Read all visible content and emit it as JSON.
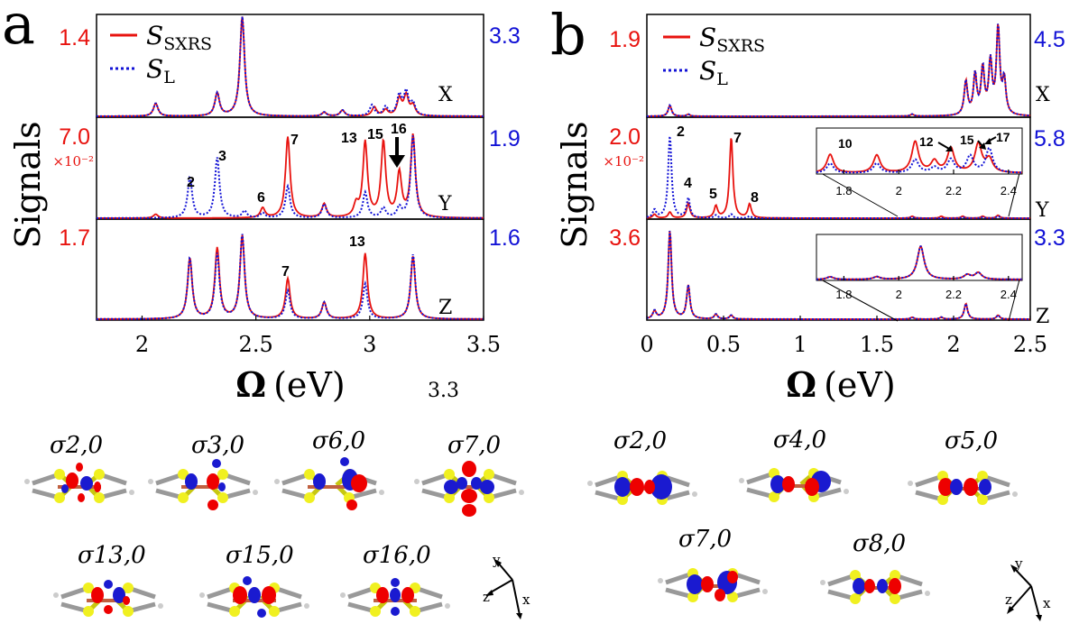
{
  "colors": {
    "red": "#e8130f",
    "blue": "#1212d6",
    "purple": "#7a1f8a",
    "black": "#000000"
  },
  "panels": [
    {
      "letter": "a",
      "legend": {
        "sxrs": "S_SXRS",
        "sl": "S_L",
        "sxrs_sub": "SXRS",
        "sl_sub": "L",
        "sym": "S"
      },
      "ylabel": "Signals",
      "xlabel_bold": "Ω",
      "xlabel_rest": "(eV)",
      "stray_label": "3.3",
      "xticks": [
        "2",
        "2.5",
        "3",
        "3.5"
      ],
      "subplots": [
        {
          "axis": "X",
          "left_top": "1.4",
          "left_exp": "",
          "right_top": "3.3",
          "peak_labels": []
        },
        {
          "axis": "Y",
          "left_top": "7.0",
          "left_exp": "×10⁻²",
          "right_top": "1.9",
          "peak_labels": [
            "2",
            "3",
            "6",
            "7",
            "13",
            "15",
            "16"
          ]
        },
        {
          "axis": "Z",
          "left_top": "1.7",
          "left_exp": "",
          "right_top": "1.6",
          "peak_labels": [
            "7",
            "13"
          ]
        }
      ]
    },
    {
      "letter": "b",
      "legend": {
        "sxrs": "S_SXRS",
        "sl": "S_L",
        "sxrs_sub": "SXRS",
        "sl_sub": "L",
        "sym": "S"
      },
      "ylabel": "Signals",
      "xlabel_bold": "Ω",
      "xlabel_rest": "(eV)",
      "xticks": [
        "0",
        "0.5",
        "1",
        "1.5",
        "2",
        "2.5"
      ],
      "subplots": [
        {
          "axis": "X",
          "left_top": "1.9",
          "left_exp": "",
          "right_top": "4.5",
          "peak_labels": []
        },
        {
          "axis": "Y",
          "left_top": "2.0",
          "left_exp": "×10⁻²",
          "right_top": "5.8",
          "peak_labels": [
            "2",
            "4",
            "5",
            "7",
            "8"
          ],
          "inset": {
            "ticks": [
              "1.8",
              "2",
              "2.2",
              "2.4"
            ],
            "labels": [
              "10",
              "12",
              "15",
              "17"
            ]
          }
        },
        {
          "axis": "Z",
          "left_top": "3.6",
          "left_exp": "",
          "right_top": "3.3",
          "peak_labels": [],
          "inset": {
            "ticks": [
              "1.8",
              "2",
              "2.2",
              "2.4"
            ],
            "labels": []
          }
        }
      ]
    }
  ],
  "orbitals_a": [
    "σ2,0",
    "σ3,0",
    "σ6,0",
    "σ7,0",
    "σ13,0",
    "σ15,0",
    "σ16,0"
  ],
  "orbitals_b": [
    "σ2,0",
    "σ4,0",
    "σ5,0",
    "σ7,0",
    "σ8,0"
  ],
  "axes_triad": {
    "y": "y",
    "z": "z",
    "x": "x"
  },
  "chart_data": [
    {
      "type": "line",
      "panel": "a",
      "subplot": "X",
      "xlabel": "Ω (eV)",
      "ylabel": "Signals",
      "xlim": [
        1.8,
        3.5
      ],
      "left_ylim": [
        0,
        1.4
      ],
      "right_ylim": [
        0,
        3.3
      ],
      "line_width": 0.012,
      "series": [
        {
          "name": "S_SXRS",
          "color": "#e8130f",
          "peaks": [
            [
              2.06,
              0.13
            ],
            [
              2.33,
              0.23
            ],
            [
              2.44,
              1.0
            ],
            [
              2.8,
              0.04
            ],
            [
              2.88,
              0.06
            ],
            [
              3.02,
              0.09
            ],
            [
              3.07,
              0.06
            ],
            [
              3.13,
              0.17
            ],
            [
              3.16,
              0.2
            ],
            [
              3.19,
              0.1
            ]
          ]
        },
        {
          "name": "S_L",
          "color": "#1212d6",
          "peaks": [
            [
              2.06,
              0.13
            ],
            [
              2.33,
              0.23
            ],
            [
              2.44,
              1.0
            ],
            [
              2.8,
              0.04
            ],
            [
              2.88,
              0.06
            ],
            [
              3.01,
              0.11
            ],
            [
              3.07,
              0.09
            ],
            [
              3.13,
              0.2
            ],
            [
              3.16,
              0.23
            ],
            [
              3.19,
              0.12
            ]
          ]
        }
      ]
    },
    {
      "type": "line",
      "panel": "a",
      "subplot": "Y",
      "left_ylim": [
        0,
        0.07
      ],
      "right_ylim": [
        0,
        1.9
      ],
      "xlim": [
        1.8,
        3.5
      ],
      "line_width": 0.012,
      "series": [
        {
          "name": "S_SXRS",
          "color": "#e8130f",
          "peaks": [
            [
              2.06,
              0.04
            ],
            [
              2.53,
              0.1
            ],
            [
              2.64,
              0.82
            ],
            [
              2.8,
              0.14
            ],
            [
              2.94,
              0.12
            ],
            [
              2.98,
              0.76
            ],
            [
              3.06,
              0.76
            ],
            [
              3.13,
              0.44
            ],
            [
              3.19,
              0.83
            ]
          ]
        },
        {
          "name": "S_L",
          "color": "#1212d6",
          "peaks": [
            [
              2.21,
              0.41
            ],
            [
              2.33,
              0.61
            ],
            [
              2.45,
              0.07
            ],
            [
              2.53,
              0.05
            ],
            [
              2.64,
              0.32
            ],
            [
              2.8,
              0.14
            ],
            [
              2.98,
              0.26
            ],
            [
              3.06,
              0.1
            ],
            [
              3.13,
              0.1
            ],
            [
              3.19,
              0.83
            ]
          ]
        }
      ]
    },
    {
      "type": "line",
      "panel": "a",
      "subplot": "Z",
      "left_ylim": [
        0,
        1.7
      ],
      "right_ylim": [
        0,
        1.6
      ],
      "xlim": [
        1.8,
        3.5
      ],
      "line_width": 0.012,
      "series": [
        {
          "name": "S_SXRS",
          "color": "#e8130f",
          "peaks": [
            [
              2.21,
              0.62
            ],
            [
              2.33,
              0.72
            ],
            [
              2.44,
              0.85
            ],
            [
              2.64,
              0.41
            ],
            [
              2.8,
              0.17
            ],
            [
              2.98,
              0.67
            ],
            [
              3.19,
              0.64
            ]
          ]
        },
        {
          "name": "S_L",
          "color": "#1212d6",
          "peaks": [
            [
              2.21,
              0.62
            ],
            [
              2.33,
              0.66
            ],
            [
              2.44,
              0.86
            ],
            [
              2.64,
              0.29
            ],
            [
              2.8,
              0.17
            ],
            [
              2.98,
              0.36
            ],
            [
              3.19,
              0.66
            ]
          ]
        }
      ]
    },
    {
      "type": "line",
      "panel": "b",
      "subplot": "X",
      "xlabel": "Ω (eV)",
      "ylabel": "Signals",
      "xlim": [
        0,
        2.5
      ],
      "left_ylim": [
        0,
        1.9
      ],
      "right_ylim": [
        0,
        4.5
      ],
      "line_width": 0.013,
      "series": [
        {
          "name": "S_SXRS",
          "color": "#e8130f",
          "peaks": [
            [
              0.15,
              0.11
            ],
            [
              0.27,
              0.02
            ],
            [
              1.73,
              0.02
            ],
            [
              2.08,
              0.34
            ],
            [
              2.14,
              0.4
            ],
            [
              2.19,
              0.46
            ],
            [
              2.24,
              0.52
            ],
            [
              2.29,
              0.86
            ],
            [
              2.33,
              0.34
            ]
          ]
        },
        {
          "name": "S_L",
          "color": "#1212d6",
          "peaks": [
            [
              0.15,
              0.11
            ],
            [
              0.27,
              0.02
            ],
            [
              1.73,
              0.02
            ],
            [
              2.08,
              0.34
            ],
            [
              2.14,
              0.4
            ],
            [
              2.19,
              0.46
            ],
            [
              2.24,
              0.52
            ],
            [
              2.29,
              0.86
            ],
            [
              2.33,
              0.34
            ]
          ]
        }
      ]
    },
    {
      "type": "line",
      "panel": "b",
      "subplot": "Y",
      "left_ylim": [
        0,
        0.02
      ],
      "right_ylim": [
        0,
        5.8
      ],
      "xlim": [
        0,
        2.5
      ],
      "line_width": 0.013,
      "series": [
        {
          "name": "S_SXRS",
          "color": "#e8130f",
          "peaks": [
            [
              0.05,
              0.04
            ],
            [
              0.15,
              0.06
            ],
            [
              0.27,
              0.15
            ],
            [
              0.45,
              0.12
            ],
            [
              0.55,
              0.82
            ],
            [
              0.67,
              0.14
            ],
            [
              1.73,
              0.02
            ],
            [
              1.92,
              0.02
            ],
            [
              2.06,
              0.02
            ],
            [
              2.19,
              0.02
            ],
            [
              2.29,
              0.03
            ]
          ]
        },
        {
          "name": "S_L",
          "color": "#1212d6",
          "peaks": [
            [
              0.05,
              0.08
            ],
            [
              0.15,
              0.83
            ],
            [
              0.27,
              0.2
            ],
            [
              0.45,
              0.03
            ],
            [
              0.55,
              0.04
            ],
            [
              0.67,
              0.02
            ],
            [
              1.73,
              0.01
            ],
            [
              2.06,
              0.01
            ],
            [
              2.19,
              0.01
            ],
            [
              2.29,
              0.02
            ]
          ]
        }
      ]
    },
    {
      "type": "line",
      "panel": "b",
      "subplot": "Z",
      "left_ylim": [
        0,
        3.6
      ],
      "right_ylim": [
        0,
        3.3
      ],
      "xlim": [
        0,
        2.5
      ],
      "line_width": 0.013,
      "series": [
        {
          "name": "S_SXRS",
          "color": "#e8130f",
          "peaks": [
            [
              0.05,
              0.08
            ],
            [
              0.15,
              0.9
            ],
            [
              0.27,
              0.34
            ],
            [
              0.45,
              0.05
            ],
            [
              0.55,
              0.04
            ],
            [
              1.73,
              0.02
            ],
            [
              1.92,
              0.02
            ],
            [
              2.08,
              0.16
            ],
            [
              2.29,
              0.04
            ]
          ]
        },
        {
          "name": "S_L",
          "color": "#1212d6",
          "peaks": [
            [
              0.05,
              0.08
            ],
            [
              0.15,
              0.9
            ],
            [
              0.27,
              0.34
            ],
            [
              0.45,
              0.05
            ],
            [
              0.55,
              0.04
            ],
            [
              1.73,
              0.02
            ],
            [
              1.92,
              0.02
            ],
            [
              2.08,
              0.16
            ],
            [
              2.29,
              0.04
            ]
          ]
        }
      ]
    },
    {
      "type": "line",
      "panel": "b",
      "subplot": "Y-inset",
      "xlim": [
        1.7,
        2.45
      ],
      "line_width": 0.015,
      "series": [
        {
          "name": "S_SXRS",
          "color": "#e8130f",
          "peaks": [
            [
              1.75,
              0.42
            ],
            [
              1.92,
              0.4
            ],
            [
              2.06,
              0.7
            ],
            [
              2.13,
              0.25
            ],
            [
              2.19,
              0.55
            ],
            [
              2.29,
              0.65
            ],
            [
              2.33,
              0.3
            ]
          ]
        },
        {
          "name": "S_L",
          "color": "#1212d6",
          "peaks": [
            [
              1.75,
              0.22
            ],
            [
              1.92,
              0.22
            ],
            [
              2.06,
              0.3
            ],
            [
              2.13,
              0.12
            ],
            [
              2.19,
              0.3
            ],
            [
              2.26,
              0.38
            ],
            [
              2.33,
              0.55
            ]
          ]
        }
      ]
    },
    {
      "type": "line",
      "panel": "b",
      "subplot": "Z-inset",
      "xlim": [
        1.7,
        2.45
      ],
      "line_width": 0.015,
      "series": [
        {
          "name": "S_SXRS",
          "color": "#e8130f",
          "peaks": [
            [
              1.75,
              0.06
            ],
            [
              1.92,
              0.06
            ],
            [
              2.08,
              0.75
            ],
            [
              2.25,
              0.1
            ],
            [
              2.29,
              0.15
            ]
          ]
        },
        {
          "name": "S_L",
          "color": "#1212d6",
          "peaks": [
            [
              1.75,
              0.06
            ],
            [
              1.92,
              0.06
            ],
            [
              2.08,
              0.75
            ],
            [
              2.25,
              0.1
            ],
            [
              2.29,
              0.15
            ]
          ]
        }
      ]
    }
  ]
}
